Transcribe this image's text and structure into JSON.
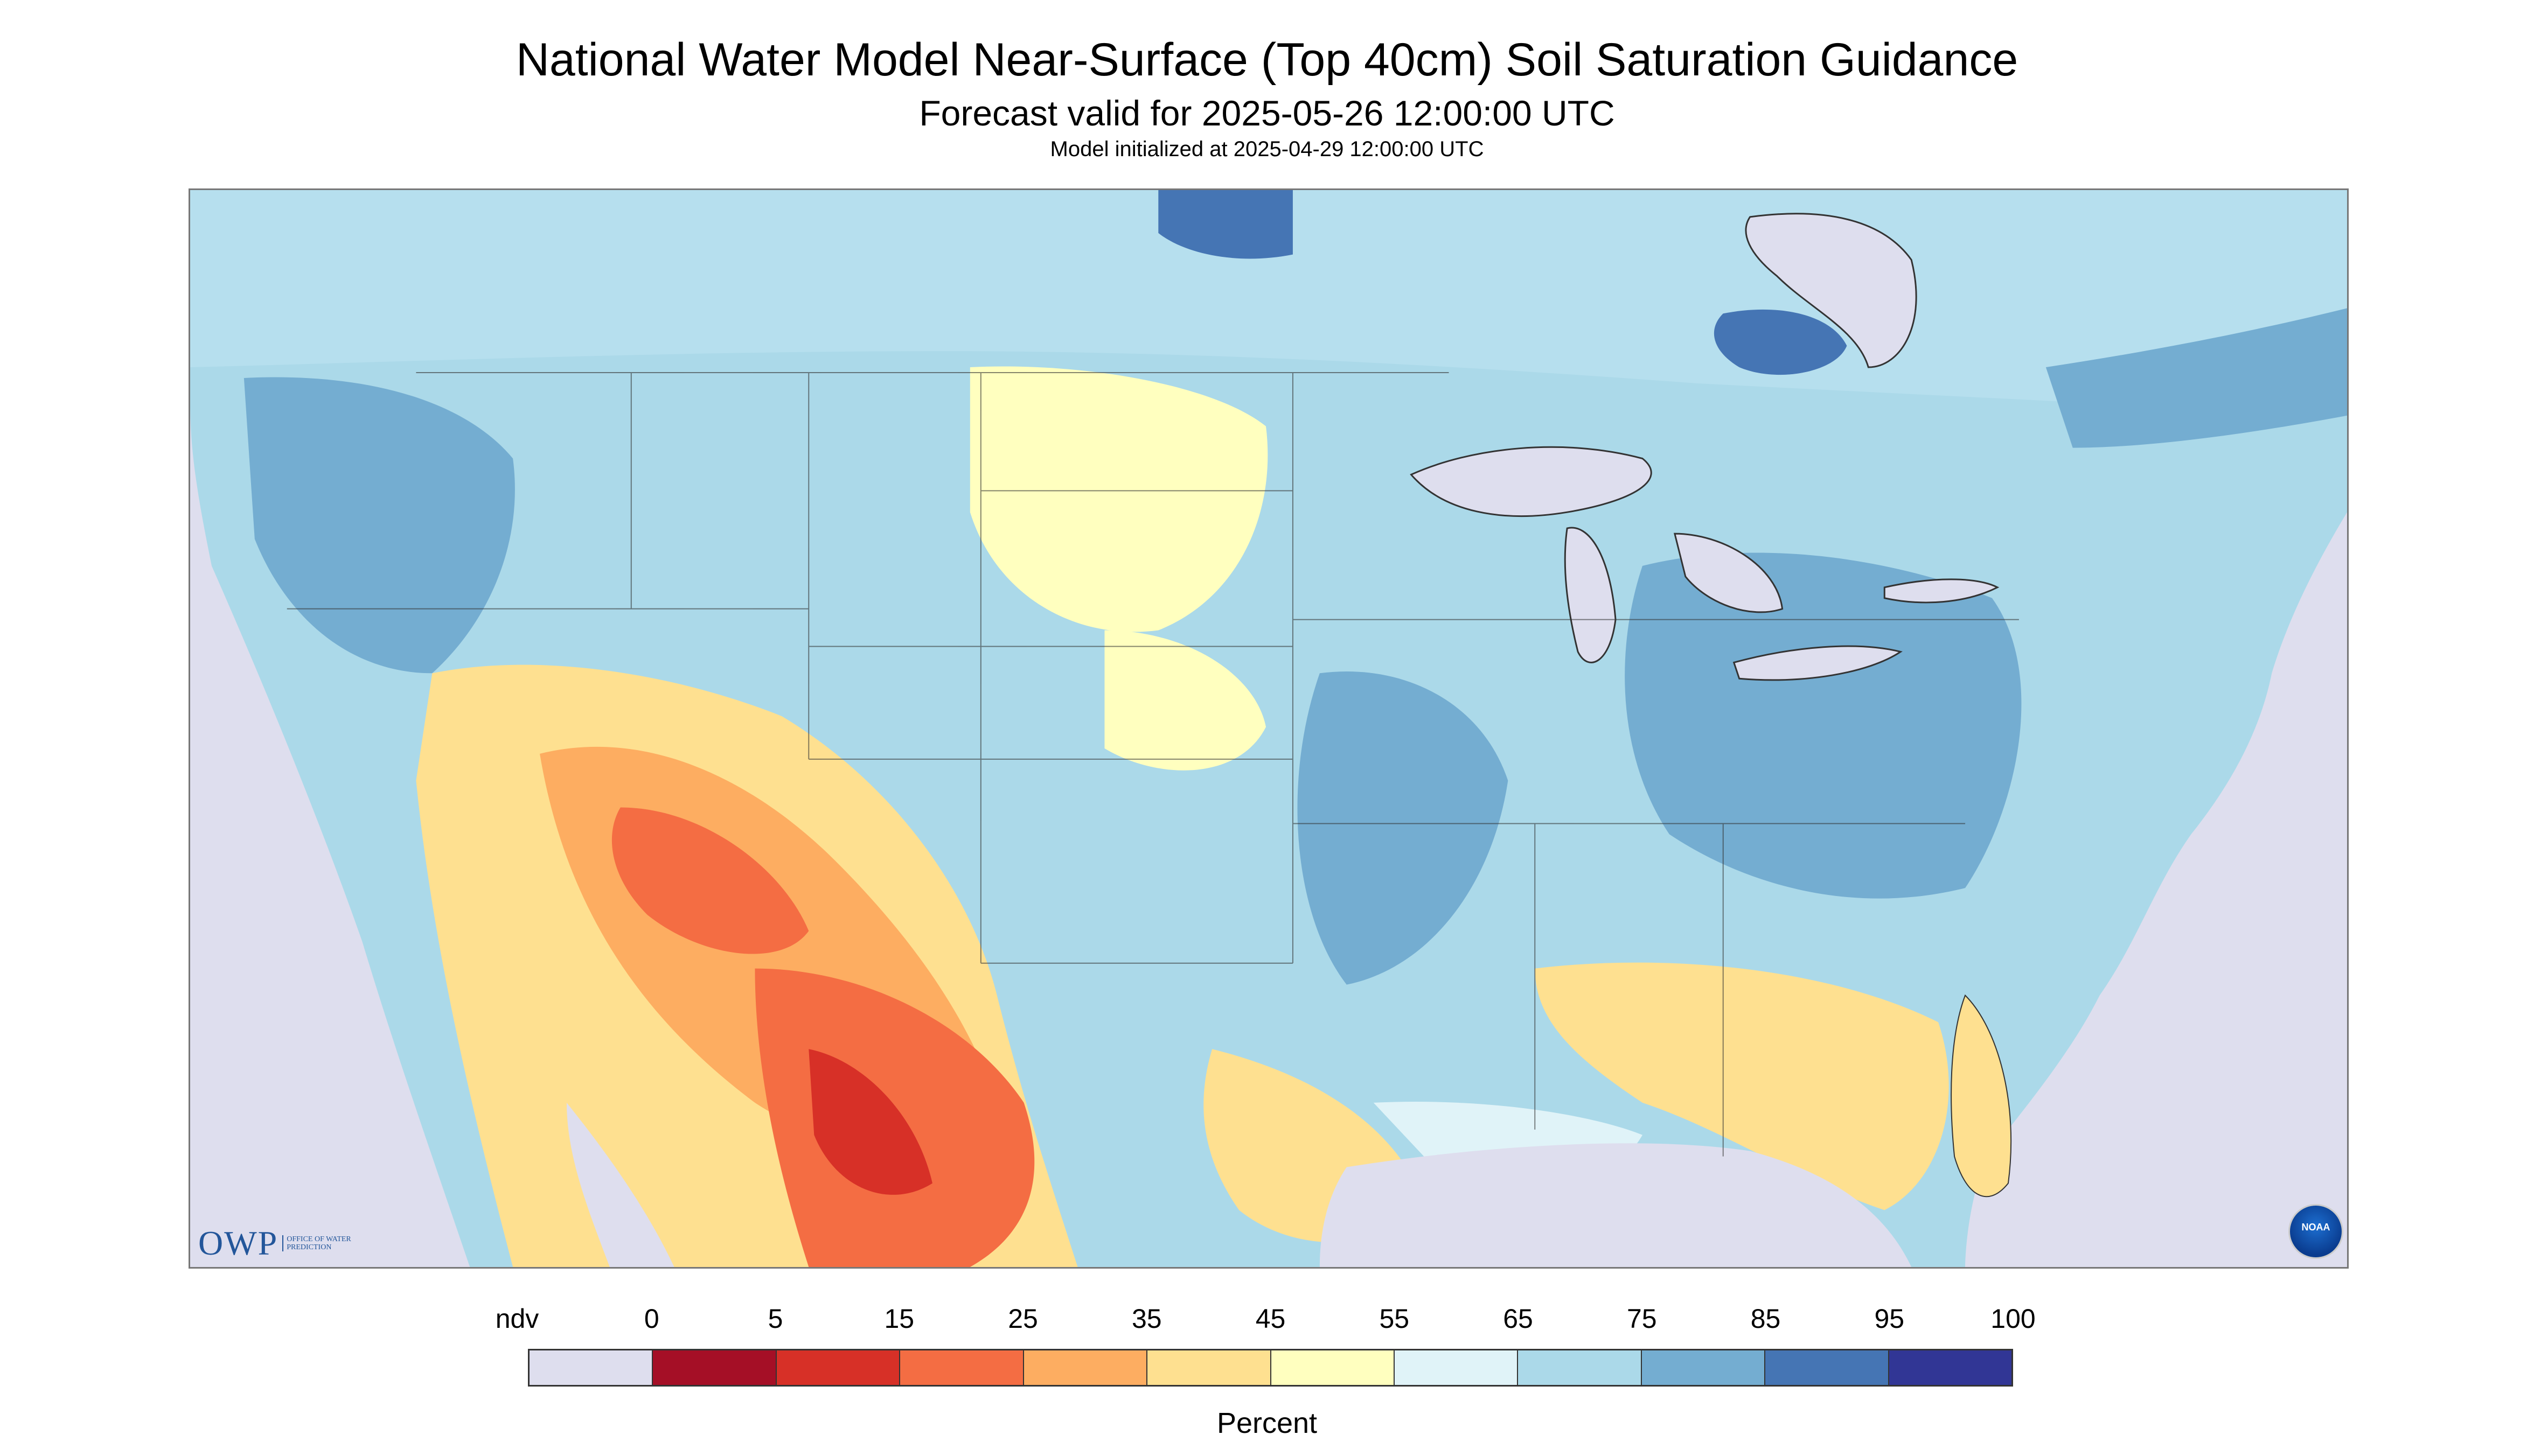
{
  "header": {
    "title": "National Water Model Near-Surface (Top 40cm) Soil Saturation Guidance",
    "subtitle": "Forecast valid for 2025-05-26 12:00:00 UTC",
    "init": "Model initialized at 2025-04-29 12:00:00 UTC"
  },
  "logos": {
    "owp_mark": "OWP",
    "owp_sub": "OFFICE OF WATER PREDICTION",
    "noaa": "NOAA"
  },
  "legend": {
    "title": "Percent",
    "labels": [
      "ndv",
      "0",
      "5",
      "15",
      "25",
      "35",
      "45",
      "55",
      "65",
      "75",
      "85",
      "95",
      "100"
    ],
    "colors": [
      "#dedeee",
      "#a50f26",
      "#d73027",
      "#f46d43",
      "#fdad61",
      "#fee090",
      "#ffffbf",
      "#e0f3f8",
      "#abd9e9",
      "#74add1",
      "#4575b4",
      "#313695"
    ]
  },
  "map_colors": {
    "background": "#dedeee",
    "land_wet": "#abd9e9",
    "land_moist": "#74add1",
    "land_saturated": "#4575b4",
    "land_dry": "#fee090",
    "land_very_dry": "#f46d43",
    "land_extreme": "#d73027",
    "water": "#dedeee"
  }
}
